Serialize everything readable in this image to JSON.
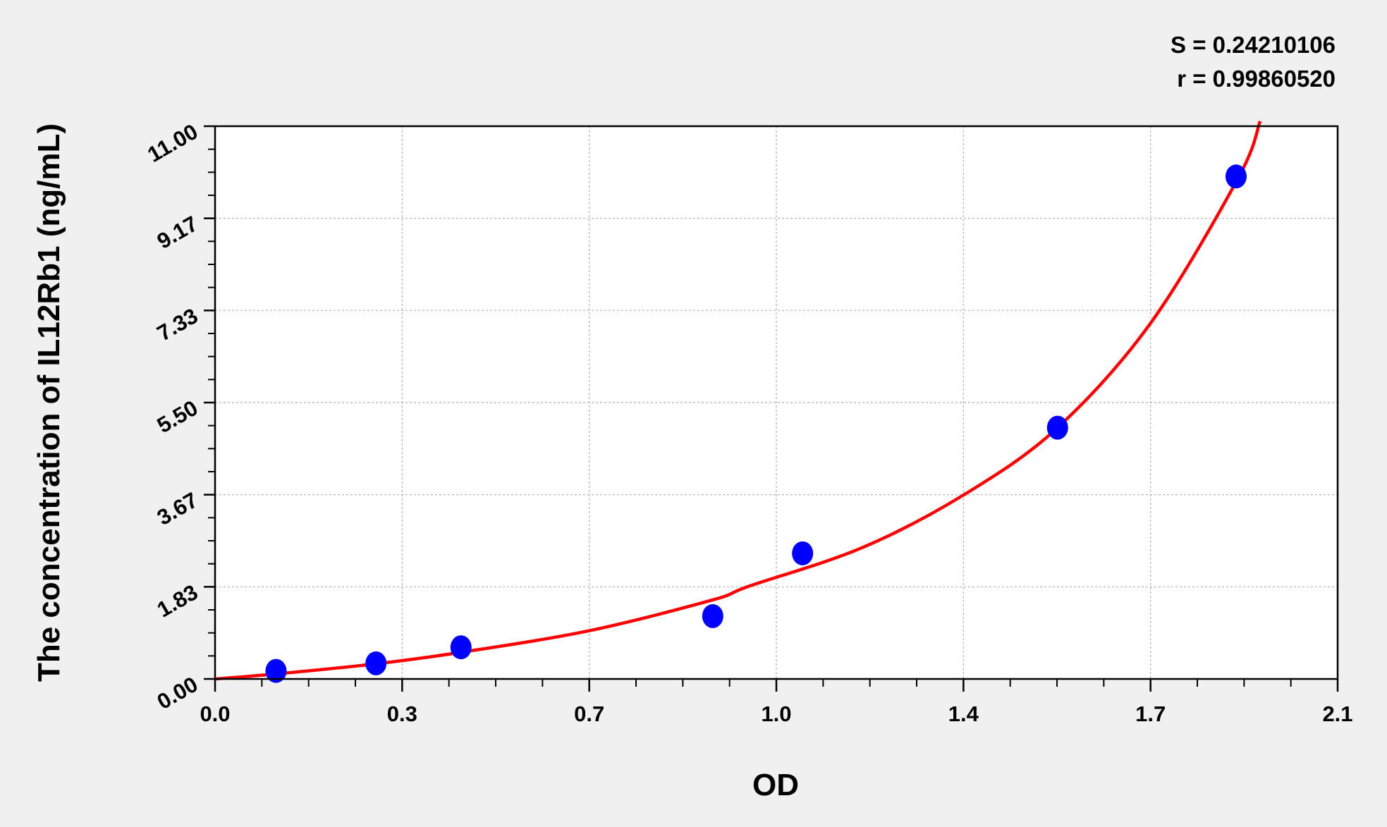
{
  "chart_data": {
    "type": "scatter",
    "title": "",
    "xlabel": "OD",
    "ylabel": "The concentration of IL12Rb1 (ng/mL)",
    "xlim": [
      0,
      2.1
    ],
    "ylim": [
      0,
      11
    ],
    "x_ticks": [
      "0.0",
      "0.3",
      "0.7",
      "1.0",
      "1.4",
      "1.7",
      "2.1"
    ],
    "y_ticks": [
      "0.00",
      "1.83",
      "3.67",
      "5.50",
      "7.33",
      "9.17",
      "11.00"
    ],
    "grid": true,
    "stats": [
      "S = 0.24210106",
      "r = 0.99860520"
    ],
    "points": {
      "color": "#0000ff",
      "x": [
        0.114,
        0.301,
        0.46,
        0.931,
        1.099,
        1.576,
        1.91
      ],
      "y": [
        0.16,
        0.31,
        0.63,
        1.25,
        2.5,
        5.0,
        10.0
      ]
    },
    "fit_curve": {
      "color": "#ff0000",
      "x": [
        0,
        0.114,
        0.3,
        0.46,
        0.7,
        0.93,
        1.0,
        1.21,
        1.4,
        1.575,
        1.75,
        1.914,
        1.955
      ],
      "y": [
        0,
        0.1,
        0.3,
        0.53,
        0.96,
        1.57,
        1.85,
        2.61,
        3.66,
        4.99,
        7.08,
        9.97,
        11.1
      ]
    }
  }
}
